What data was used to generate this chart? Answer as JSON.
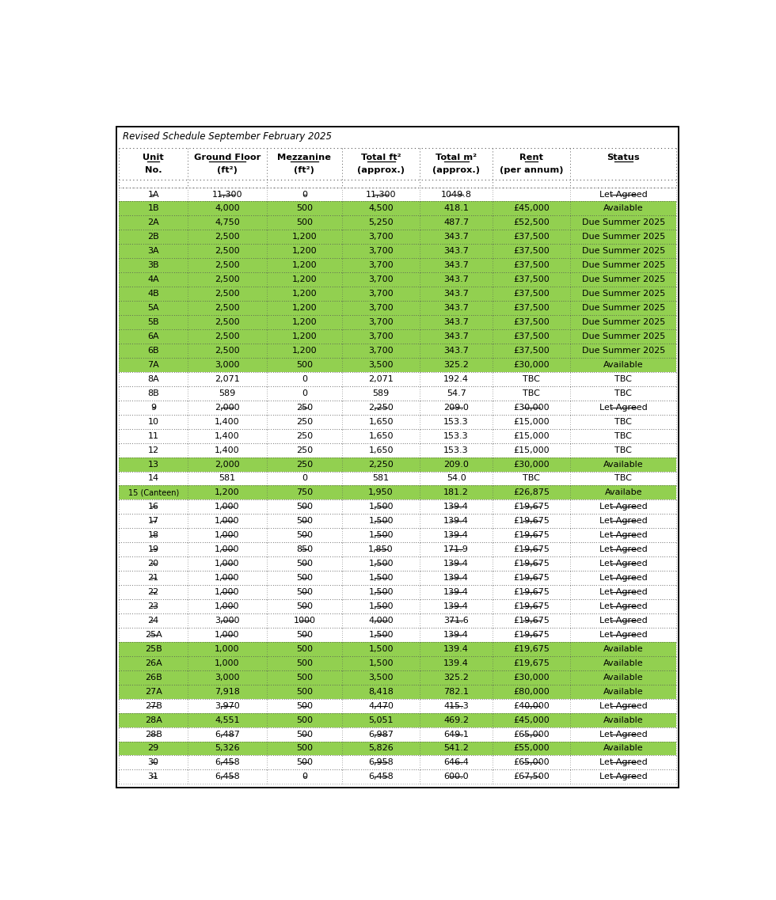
{
  "title": "Revised Schedule September February 2025",
  "rows": [
    {
      "unit": "1A",
      "gf": "11,300",
      "mez": "0",
      "tft": "11,300",
      "tm": "1049.8",
      "rent": "",
      "status": "Let Agreed",
      "strike": true,
      "green": false
    },
    {
      "unit": "1B",
      "gf": "4,000",
      "mez": "500",
      "tft": "4,500",
      "tm": "418.1",
      "rent": "£45,000",
      "status": "Available",
      "strike": false,
      "green": true
    },
    {
      "unit": "2A",
      "gf": "4,750",
      "mez": "500",
      "tft": "5,250",
      "tm": "487.7",
      "rent": "£52,500",
      "status": "Due Summer 2025",
      "strike": false,
      "green": true
    },
    {
      "unit": "2B",
      "gf": "2,500",
      "mez": "1,200",
      "tft": "3,700",
      "tm": "343.7",
      "rent": "£37,500",
      "status": "Due Summer 2025",
      "strike": false,
      "green": true
    },
    {
      "unit": "3A",
      "gf": "2,500",
      "mez": "1,200",
      "tft": "3,700",
      "tm": "343.7",
      "rent": "£37,500",
      "status": "Due Summer 2025",
      "strike": false,
      "green": true
    },
    {
      "unit": "3B",
      "gf": "2,500",
      "mez": "1,200",
      "tft": "3,700",
      "tm": "343.7",
      "rent": "£37,500",
      "status": "Due Summer 2025",
      "strike": false,
      "green": true
    },
    {
      "unit": "4A",
      "gf": "2,500",
      "mez": "1,200",
      "tft": "3,700",
      "tm": "343.7",
      "rent": "£37,500",
      "status": "Due Summer 2025",
      "strike": false,
      "green": true
    },
    {
      "unit": "4B",
      "gf": "2,500",
      "mez": "1,200",
      "tft": "3,700",
      "tm": "343.7",
      "rent": "£37,500",
      "status": "Due Summer 2025",
      "strike": false,
      "green": true
    },
    {
      "unit": "5A",
      "gf": "2,500",
      "mez": "1,200",
      "tft": "3,700",
      "tm": "343.7",
      "rent": "£37,500",
      "status": "Due Summer 2025",
      "strike": false,
      "green": true
    },
    {
      "unit": "5B",
      "gf": "2,500",
      "mez": "1,200",
      "tft": "3,700",
      "tm": "343.7",
      "rent": "£37,500",
      "status": "Due Summer 2025",
      "strike": false,
      "green": true
    },
    {
      "unit": "6A",
      "gf": "2,500",
      "mez": "1,200",
      "tft": "3,700",
      "tm": "343.7",
      "rent": "£37,500",
      "status": "Due Summer 2025",
      "strike": false,
      "green": true
    },
    {
      "unit": "6B",
      "gf": "2,500",
      "mez": "1,200",
      "tft": "3,700",
      "tm": "343.7",
      "rent": "£37,500",
      "status": "Due Summer 2025",
      "strike": false,
      "green": true
    },
    {
      "unit": "7A",
      "gf": "3,000",
      "mez": "500",
      "tft": "3,500",
      "tm": "325.2",
      "rent": "£30,000",
      "status": "Available",
      "strike": false,
      "green": true
    },
    {
      "unit": "8A",
      "gf": "2,071",
      "mez": "0",
      "tft": "2,071",
      "tm": "192.4",
      "rent": "TBC",
      "status": "TBC",
      "strike": false,
      "green": false
    },
    {
      "unit": "8B",
      "gf": "589",
      "mez": "0",
      "tft": "589",
      "tm": "54.7",
      "rent": "TBC",
      "status": "TBC",
      "strike": false,
      "green": false
    },
    {
      "unit": "9",
      "gf": "2,000",
      "mez": "250",
      "tft": "2,250",
      "tm": "209.0",
      "rent": "£30,000",
      "status": "Let Agreed",
      "strike": true,
      "green": false
    },
    {
      "unit": "10",
      "gf": "1,400",
      "mez": "250",
      "tft": "1,650",
      "tm": "153.3",
      "rent": "£15,000",
      "status": "TBC",
      "strike": false,
      "green": false
    },
    {
      "unit": "11",
      "gf": "1,400",
      "mez": "250",
      "tft": "1,650",
      "tm": "153.3",
      "rent": "£15,000",
      "status": "TBC",
      "strike": false,
      "green": false
    },
    {
      "unit": "12",
      "gf": "1,400",
      "mez": "250",
      "tft": "1,650",
      "tm": "153.3",
      "rent": "£15,000",
      "status": "TBC",
      "strike": false,
      "green": false
    },
    {
      "unit": "13",
      "gf": "2,000",
      "mez": "250",
      "tft": "2,250",
      "tm": "209.0",
      "rent": "£30,000",
      "status": "Available",
      "strike": false,
      "green": true
    },
    {
      "unit": "14",
      "gf": "581",
      "mez": "0",
      "tft": "581",
      "tm": "54.0",
      "rent": "TBC",
      "status": "TBC",
      "strike": false,
      "green": false
    },
    {
      "unit": "15 (Canteen)",
      "gf": "1,200",
      "mez": "750",
      "tft": "1,950",
      "tm": "181.2",
      "rent": "£26,875",
      "status": "Availabe",
      "strike": false,
      "green": true
    },
    {
      "unit": "16",
      "gf": "1,000",
      "mez": "500",
      "tft": "1,500",
      "tm": "139.4",
      "rent": "£19,675",
      "status": "Let Agreed",
      "strike": true,
      "green": false
    },
    {
      "unit": "17",
      "gf": "1,000",
      "mez": "500",
      "tft": "1,500",
      "tm": "139.4",
      "rent": "£19,675",
      "status": "Let Agreed",
      "strike": true,
      "green": false
    },
    {
      "unit": "18",
      "gf": "1,000",
      "mez": "500",
      "tft": "1,500",
      "tm": "139.4",
      "rent": "£19,675",
      "status": "Let Agreed",
      "strike": true,
      "green": false
    },
    {
      "unit": "19",
      "gf": "1,000",
      "mez": "850",
      "tft": "1,850",
      "tm": "171.9",
      "rent": "£19,675",
      "status": "Let Agreed",
      "strike": true,
      "green": false
    },
    {
      "unit": "20",
      "gf": "1,000",
      "mez": "500",
      "tft": "1,500",
      "tm": "139.4",
      "rent": "£19,675",
      "status": "Let Agreed",
      "strike": true,
      "green": false
    },
    {
      "unit": "21",
      "gf": "1,000",
      "mez": "500",
      "tft": "1,500",
      "tm": "139.4",
      "rent": "£19,675",
      "status": "Let Agreed",
      "strike": true,
      "green": false
    },
    {
      "unit": "22",
      "gf": "1,000",
      "mez": "500",
      "tft": "1,500",
      "tm": "139.4",
      "rent": "£19,675",
      "status": "Let Agreed",
      "strike": true,
      "green": false
    },
    {
      "unit": "23",
      "gf": "1,000",
      "mez": "500",
      "tft": "1,500",
      "tm": "139.4",
      "rent": "£19,675",
      "status": "Let Agreed",
      "strike": true,
      "green": false
    },
    {
      "unit": "24",
      "gf": "3,000",
      "mez": "1000",
      "tft": "4,000",
      "tm": "371.6",
      "rent": "£19,675",
      "status": "Let Agreed",
      "strike": true,
      "green": false
    },
    {
      "unit": "25A",
      "gf": "1,000",
      "mez": "500",
      "tft": "1,500",
      "tm": "139.4",
      "rent": "£19,675",
      "status": "Let Agreed",
      "strike": true,
      "green": false
    },
    {
      "unit": "25B",
      "gf": "1,000",
      "mez": "500",
      "tft": "1,500",
      "tm": "139.4",
      "rent": "£19,675",
      "status": "Available",
      "strike": false,
      "green": true
    },
    {
      "unit": "26A",
      "gf": "1,000",
      "mez": "500",
      "tft": "1,500",
      "tm": "139.4",
      "rent": "£19,675",
      "status": "Available",
      "strike": false,
      "green": true
    },
    {
      "unit": "26B",
      "gf": "3,000",
      "mez": "500",
      "tft": "3,500",
      "tm": "325.2",
      "rent": "£30,000",
      "status": "Available",
      "strike": false,
      "green": true
    },
    {
      "unit": "27A",
      "gf": "7,918",
      "mez": "500",
      "tft": "8,418",
      "tm": "782.1",
      "rent": "£80,000",
      "status": "Available",
      "strike": false,
      "green": true
    },
    {
      "unit": "27B",
      "gf": "3,970",
      "mez": "500",
      "tft": "4,470",
      "tm": "415.3",
      "rent": "£40,000",
      "status": "Let Agreed",
      "strike": true,
      "green": false
    },
    {
      "unit": "28A",
      "gf": "4,551",
      "mez": "500",
      "tft": "5,051",
      "tm": "469.2",
      "rent": "£45,000",
      "status": "Available",
      "strike": false,
      "green": true
    },
    {
      "unit": "28B",
      "gf": "6,487",
      "mez": "500",
      "tft": "6,987",
      "tm": "649.1",
      "rent": "£65,000",
      "status": "Let Agreed",
      "strike": true,
      "green": false
    },
    {
      "unit": "29",
      "gf": "5,326",
      "mez": "500",
      "tft": "5,826",
      "tm": "541.2",
      "rent": "£55,000",
      "status": "Available",
      "strike": false,
      "green": true
    },
    {
      "unit": "30",
      "gf": "6,458",
      "mez": "500",
      "tft": "6,958",
      "tm": "646.4",
      "rent": "£65,000",
      "status": "Let Agreed",
      "strike": true,
      "green": false
    },
    {
      "unit": "31",
      "gf": "6,458",
      "mez": "0",
      "tft": "6,458",
      "tm": "600.0",
      "rent": "£67,500",
      "status": "Let Agreed",
      "strike": true,
      "green": false
    }
  ],
  "col_labels_line1": [
    "Unit",
    "Ground Floor",
    "Mezzanine",
    "Total ft²",
    "Total m²",
    "Rent",
    "Status"
  ],
  "col_labels_line2": [
    "No.",
    "(ft²)",
    "(ft²)",
    "(approx.)",
    "(approx.)",
    "(per annum)",
    ""
  ],
  "green_color": "#92D050",
  "white_color": "#FFFFFF",
  "dot_color": "#888888"
}
